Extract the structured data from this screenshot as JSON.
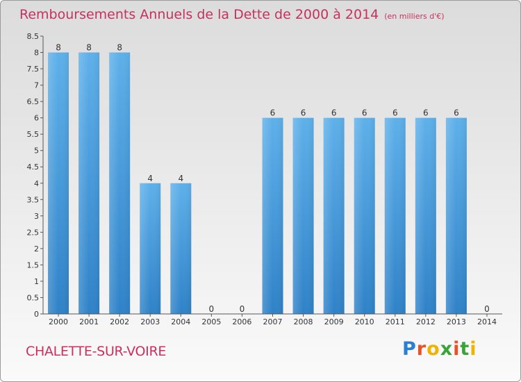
{
  "chart_data": {
    "type": "bar",
    "title": "Remboursements Annuels de la Dette de 2000 à 2014",
    "unit": "(en milliers d'€)",
    "categories": [
      "2000",
      "2001",
      "2002",
      "2003",
      "2004",
      "2005",
      "2006",
      "2007",
      "2008",
      "2009",
      "2010",
      "2011",
      "2012",
      "2013",
      "2014"
    ],
    "values": [
      8,
      8,
      8,
      4,
      4,
      0,
      0,
      6,
      6,
      6,
      6,
      6,
      6,
      6,
      0
    ],
    "data_labels": [
      "8",
      "8",
      "8",
      "4",
      "4",
      "0",
      "0",
      "6",
      "6",
      "6",
      "6",
      "6",
      "6",
      "6",
      "0"
    ],
    "ylim": [
      0,
      8.5
    ],
    "y_ticks": [
      0,
      0.5,
      1,
      1.5,
      2,
      2.5,
      3,
      3.5,
      4,
      4.5,
      5,
      5.5,
      6,
      6.5,
      7,
      7.5,
      8,
      8.5
    ],
    "y_tick_labels": [
      "0",
      "0.5",
      "1",
      "1.5",
      "2",
      "2.5",
      "3",
      "3.5",
      "4",
      "4.5",
      "5",
      "5.5",
      "6",
      "6.5",
      "7",
      "7.5",
      "8",
      "8.5"
    ],
    "xlabel": "",
    "ylabel": "",
    "bar_color": "#5aaae6",
    "grid": false
  },
  "footer": {
    "commune": "CHALETTE-SUR-VOIRE",
    "logo": "Proxiti"
  },
  "colors": {
    "title": "#c8305e",
    "commune": "#c8305e"
  }
}
